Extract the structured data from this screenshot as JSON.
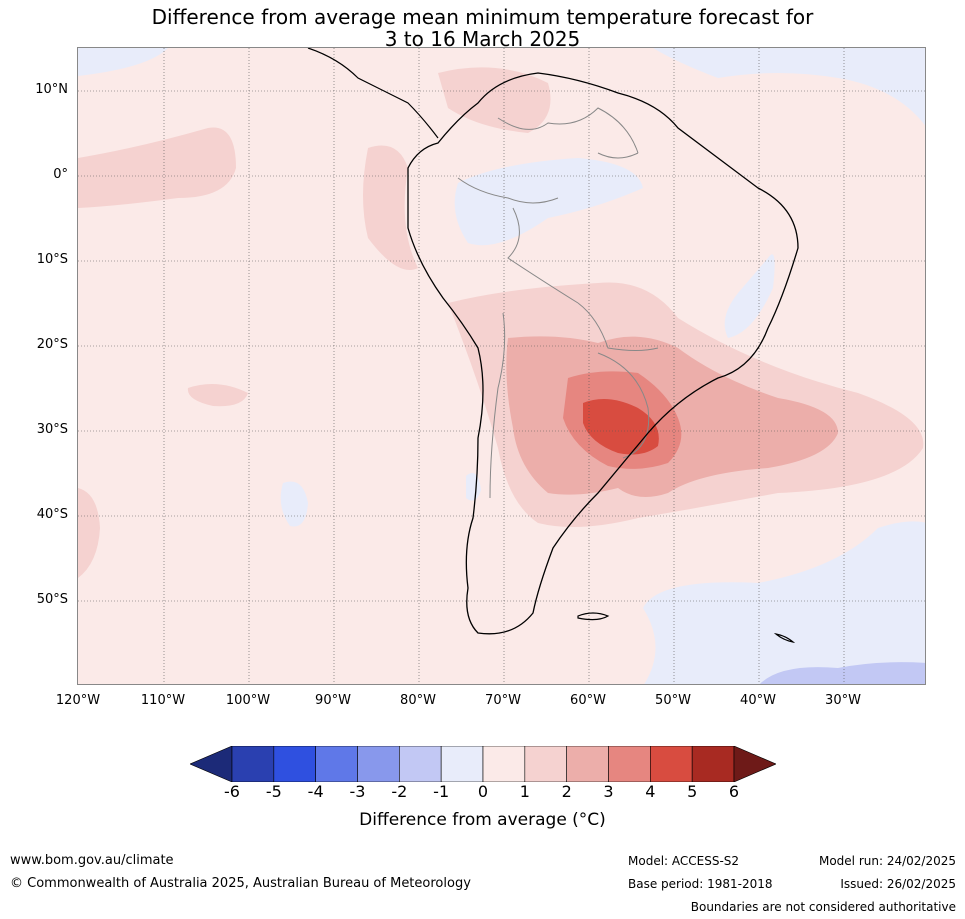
{
  "title_line1": "Difference from average mean minimum temperature forecast for",
  "title_line2": "3 to 16 March 2025",
  "lat_labels": [
    "10°N",
    "0°",
    "10°S",
    "20°S",
    "30°S",
    "40°S",
    "50°S"
  ],
  "lon_labels": [
    "120°W",
    "110°W",
    "100°W",
    "90°W",
    "80°W",
    "70°W",
    "60°W",
    "50°W",
    "40°W",
    "30°W"
  ],
  "colorbar": {
    "ticks": [
      "-6",
      "-5",
      "-4",
      "-3",
      "-2",
      "-1",
      "0",
      "1",
      "2",
      "3",
      "4",
      "5",
      "6"
    ],
    "colors": [
      "#1c2a78",
      "#2a40b0",
      "#2f50e0",
      "#5f78e8",
      "#8898ec",
      "#c2c8f4",
      "#e8ecfa",
      "#fbeae8",
      "#f5d2d0",
      "#ecaeaa",
      "#e68680",
      "#d84c40",
      "#a82a22",
      "#6e1a18"
    ],
    "label": "Difference from average (°C)"
  },
  "footer": {
    "website": "www.bom.gov.au/climate",
    "copyright": "© Commonwealth of Australia 2025, Australian Bureau of Meteorology",
    "model": "Model: ACCESS-S2",
    "base_period": "Base period: 1981-2018",
    "model_run": "Model run: 24/02/2025",
    "issued": "Issued: 26/02/2025",
    "disclaimer": "Boundaries are not considered authoritative"
  }
}
